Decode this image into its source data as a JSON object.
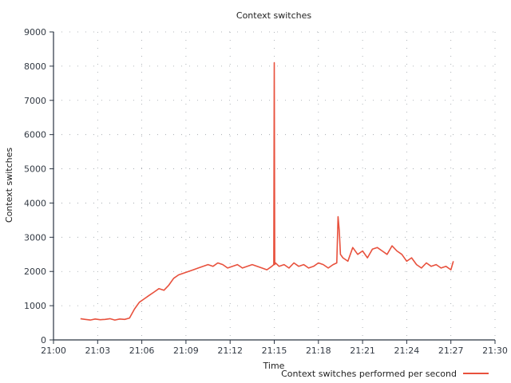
{
  "chart_data": {
    "type": "line",
    "title": "Context switches",
    "xlabel": "Time",
    "ylabel": "Context switches",
    "x_ticks": [
      "21:00",
      "21:03",
      "21:06",
      "21:09",
      "21:12",
      "21:15",
      "21:18",
      "21:21",
      "21:24",
      "21:27",
      "21:30"
    ],
    "x_range": [
      "21:00",
      "21:30"
    ],
    "y_ticks": [
      0,
      1000,
      2000,
      3000,
      4000,
      5000,
      6000,
      7000,
      8000,
      9000
    ],
    "ylim": [
      0,
      9000
    ],
    "grid": true,
    "legend_position": "bottom-right",
    "series": [
      {
        "name": "Context switches performed per second",
        "color": "#e8513d",
        "x": [
          "21:01:50",
          "21:02:10",
          "21:02:30",
          "21:02:50",
          "21:03:10",
          "21:03:30",
          "21:03:50",
          "21:04:10",
          "21:04:30",
          "21:04:50",
          "21:05:10",
          "21:05:30",
          "21:05:50",
          "21:06:10",
          "21:06:30",
          "21:06:50",
          "21:07:10",
          "21:07:30",
          "21:07:50",
          "21:08:10",
          "21:08:30",
          "21:08:50",
          "21:09:10",
          "21:09:30",
          "21:09:50",
          "21:10:10",
          "21:10:30",
          "21:10:50",
          "21:11:10",
          "21:11:30",
          "21:11:50",
          "21:12:10",
          "21:12:30",
          "21:12:50",
          "21:13:10",
          "21:13:30",
          "21:13:50",
          "21:14:10",
          "21:14:30",
          "21:14:50",
          "21:14:58",
          "21:15:00",
          "21:15:02",
          "21:15:05",
          "21:15:20",
          "21:15:40",
          "21:16:00",
          "21:16:20",
          "21:16:40",
          "21:17:00",
          "21:17:20",
          "21:17:40",
          "21:18:00",
          "21:18:20",
          "21:18:40",
          "21:19:00",
          "21:19:15",
          "21:19:20",
          "21:19:25",
          "21:19:30",
          "21:19:40",
          "21:20:00",
          "21:20:20",
          "21:20:40",
          "21:21:00",
          "21:21:20",
          "21:21:40",
          "21:22:00",
          "21:22:20",
          "21:22:40",
          "21:23:00",
          "21:23:20",
          "21:23:40",
          "21:24:00",
          "21:24:20",
          "21:24:40",
          "21:25:00",
          "21:25:20",
          "21:25:40",
          "21:26:00",
          "21:26:20",
          "21:26:40",
          "21:27:00",
          "21:27:10"
        ],
        "values": [
          620,
          600,
          580,
          610,
          590,
          600,
          620,
          580,
          610,
          600,
          640,
          900,
          1100,
          1200,
          1300,
          1400,
          1500,
          1450,
          1600,
          1800,
          1900,
          1950,
          2000,
          2050,
          2100,
          2150,
          2200,
          2150,
          2250,
          2200,
          2100,
          2150,
          2200,
          2100,
          2150,
          2200,
          2150,
          2100,
          2050,
          2150,
          2200,
          8100,
          2200,
          2250,
          2150,
          2200,
          2100,
          2250,
          2150,
          2200,
          2100,
          2150,
          2250,
          2200,
          2100,
          2200,
          2250,
          3600,
          3200,
          2500,
          2400,
          2300,
          2700,
          2500,
          2600,
          2400,
          2650,
          2700,
          2600,
          2500,
          2750,
          2600,
          2500,
          2300,
          2400,
          2200,
          2100,
          2250,
          2150,
          2200,
          2100,
          2150,
          2050,
          2300
        ]
      }
    ]
  }
}
